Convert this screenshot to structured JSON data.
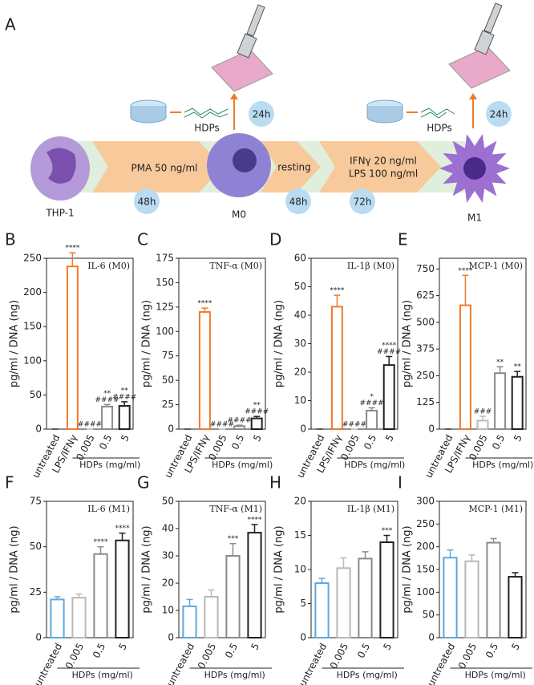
{
  "diagram": {
    "panel": "A",
    "cells": [
      "THP-1",
      "M0",
      "M1"
    ],
    "steps": [
      [
        "PMA 50 ng/ml"
      ],
      [
        "resting"
      ],
      [
        "IFNγ 20 ng/ml",
        "LPS 100 ng/ml"
      ]
    ],
    "durations": [
      "48h",
      "48h",
      "72h"
    ],
    "treatments": [
      "HDPs",
      "HDPs"
    ],
    "incubation": [
      "24h",
      "24h"
    ]
  },
  "chart_data": [
    {
      "type": "bar",
      "panel": "B",
      "title": "IL-6 (M0)",
      "ylabel": "pg/ml / DNA (ng)",
      "group_label": "HDPs (mg/ml)",
      "categories": [
        "untreated",
        "LPS/IFNγ",
        "0.005",
        "0.5",
        "5"
      ],
      "values": [
        0,
        238,
        0,
        33,
        34
      ],
      "errors": [
        0,
        20,
        0,
        3,
        6
      ],
      "colors": [
        "#222222",
        "#f07a2a",
        "#b8b8b8",
        "#8a8a8a",
        "#222222"
      ],
      "annotations": [
        [],
        [
          "****"
        ],
        [
          "####"
        ],
        [
          "**",
          "####"
        ],
        [
          "**",
          "####"
        ]
      ],
      "ylim": [
        0,
        250
      ],
      "yticks": [
        0,
        50,
        100,
        150,
        200,
        250
      ]
    },
    {
      "type": "bar",
      "panel": "C",
      "title": "TNF-α (M0)",
      "ylabel": "pg/ml / DNA (ng)",
      "group_label": "HDPs (mg/ml)",
      "categories": [
        "untreated",
        "LPS/IFNγ",
        "0.005",
        "0.5",
        "5"
      ],
      "values": [
        0,
        120,
        0,
        3,
        11
      ],
      "errors": [
        0,
        4,
        0,
        1,
        2
      ],
      "colors": [
        "#222222",
        "#f07a2a",
        "#b8b8b8",
        "#8a8a8a",
        "#222222"
      ],
      "annotations": [
        [],
        [
          "****"
        ],
        [
          "####"
        ],
        [
          "####"
        ],
        [
          "**",
          "####"
        ]
      ],
      "ylim": [
        0,
        175
      ],
      "yticks": [
        0,
        25,
        50,
        75,
        100,
        125,
        150,
        175
      ]
    },
    {
      "type": "bar",
      "panel": "D",
      "title": "IL-1β (M0)",
      "ylabel": "pg/ml / DNA (ng)",
      "group_label": "HDPs (mg/ml)",
      "categories": [
        "untreated",
        "LPS/IFNγ",
        "0.005",
        "0.5",
        "5"
      ],
      "values": [
        0,
        43,
        0,
        6.5,
        22.5
      ],
      "errors": [
        0,
        4,
        0,
        1,
        3
      ],
      "colors": [
        "#222222",
        "#f07a2a",
        "#b8b8b8",
        "#8a8a8a",
        "#222222"
      ],
      "annotations": [
        [],
        [
          "****"
        ],
        [
          "####"
        ],
        [
          "*",
          "####"
        ],
        [
          "****",
          "####"
        ]
      ],
      "ylim": [
        0,
        60
      ],
      "yticks": [
        0,
        10,
        20,
        30,
        40,
        50,
        60
      ]
    },
    {
      "type": "bar",
      "panel": "E",
      "title": "MCP-1 (M0)",
      "ylabel": "pg/ml / DNA (ng)",
      "group_label": "HDPs (mg/ml)",
      "categories": [
        "untreated",
        "LPS/IFNγ",
        "0.005",
        "0.5",
        "5"
      ],
      "values": [
        0,
        580,
        40,
        262,
        245
      ],
      "errors": [
        0,
        140,
        20,
        30,
        25
      ],
      "colors": [
        "#222222",
        "#f07a2a",
        "#b8b8b8",
        "#8a8a8a",
        "#222222"
      ],
      "annotations": [
        [],
        [
          "****"
        ],
        [
          "###"
        ],
        [
          "**"
        ],
        [
          "**"
        ]
      ],
      "ylim": [
        0,
        800
      ],
      "yticks": [
        0,
        125,
        250,
        375,
        500,
        625,
        750
      ]
    },
    {
      "type": "bar",
      "panel": "F",
      "title": "IL-6 (M1)",
      "ylabel": "pg/ml / DNA (ng)",
      "group_label": "HDPs (mg/ml)",
      "categories": [
        "untreated",
        "0.005",
        "0.5",
        "5"
      ],
      "values": [
        21,
        22,
        46,
        53.5
      ],
      "errors": [
        1.5,
        2,
        4,
        4
      ],
      "colors": [
        "#5ea8e0",
        "#b8b8b8",
        "#8a8a8a",
        "#222222"
      ],
      "annotations": [
        [],
        [],
        [
          "****"
        ],
        [
          "****"
        ]
      ],
      "ylim": [
        0,
        75
      ],
      "yticks": [
        0,
        25,
        50,
        75
      ]
    },
    {
      "type": "bar",
      "panel": "G",
      "title": "TNF-α (M1)",
      "ylabel": "pg/ml / DNA (ng)",
      "group_label": "HDPs (mg/ml)",
      "categories": [
        "untreated",
        "0.005",
        "0.5",
        "5"
      ],
      "values": [
        11.5,
        15,
        30,
        38.5
      ],
      "errors": [
        2.5,
        2.5,
        4.5,
        3
      ],
      "colors": [
        "#5ea8e0",
        "#b8b8b8",
        "#8a8a8a",
        "#222222"
      ],
      "annotations": [
        [],
        [],
        [
          "***"
        ],
        [
          "****"
        ]
      ],
      "ylim": [
        0,
        50
      ],
      "yticks": [
        0,
        10,
        20,
        30,
        40,
        50
      ]
    },
    {
      "type": "bar",
      "panel": "H",
      "title": "IL-1β (M1)",
      "ylabel": "pg/ml / DNA (ng)",
      "group_label": "HDPs (mg/ml)",
      "categories": [
        "untreated",
        "0.005",
        "0.5",
        "5"
      ],
      "values": [
        8,
        10.2,
        11.6,
        14
      ],
      "errors": [
        0.7,
        1.5,
        1,
        1
      ],
      "colors": [
        "#5ea8e0",
        "#b8b8b8",
        "#8a8a8a",
        "#222222"
      ],
      "annotations": [
        [],
        [],
        [],
        [
          "***"
        ]
      ],
      "ylim": [
        0,
        20
      ],
      "yticks": [
        0,
        5,
        10,
        15,
        20
      ]
    },
    {
      "type": "bar",
      "panel": "I",
      "title": "MCP-1 (M1)",
      "ylabel": "pg/ml / DNA (ng)",
      "group_label": "HDPs (mg/ml)",
      "categories": [
        "untreated",
        "0.005",
        "0.5",
        "5"
      ],
      "values": [
        176,
        168,
        209,
        134
      ],
      "errors": [
        17,
        14,
        9,
        9
      ],
      "colors": [
        "#5ea8e0",
        "#b8b8b8",
        "#8a8a8a",
        "#222222"
      ],
      "annotations": [
        [],
        [],
        [],
        []
      ],
      "ylim": [
        0,
        300
      ],
      "yticks": [
        0,
        50,
        100,
        150,
        200,
        250,
        300
      ]
    }
  ]
}
